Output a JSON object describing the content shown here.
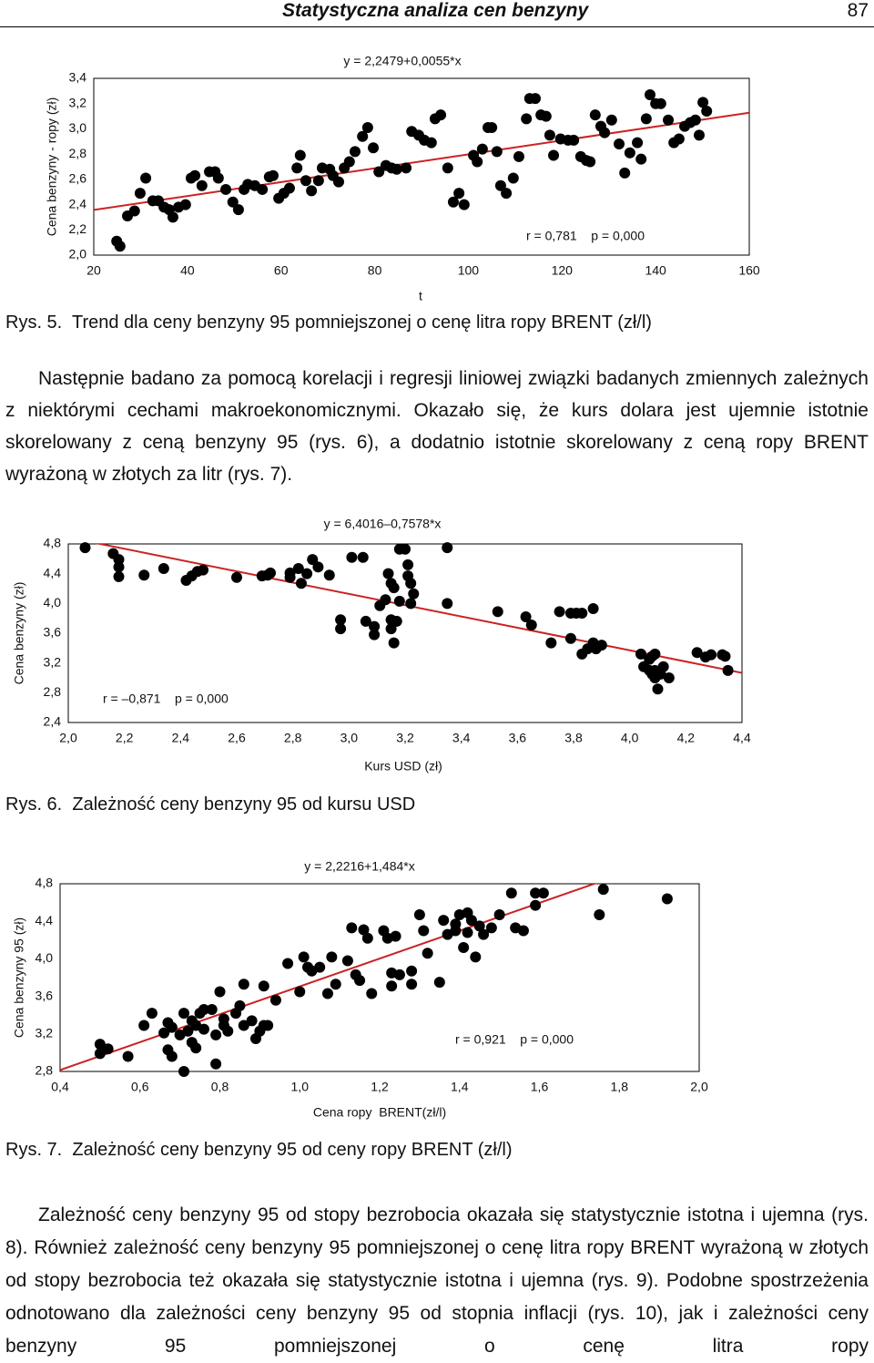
{
  "header": {
    "title": "Statystyczna analiza cen benzyny",
    "page_number": "87"
  },
  "chart_data": [
    {
      "type": "scatter",
      "title": "y = 2,2479+0,0055*x",
      "xlabel": "t",
      "ylabel": "Cena benzyny - ropy (zł)",
      "annotation": "r = 0,781    p = 0,000",
      "caption": "Rys. 5.  Trend dla ceny benzyny 95 pomniejszonej o cenę litra ropy BRENT (zł/l)",
      "color": "#000000",
      "trend": {
        "intercept": 2.2479,
        "slope": 0.0055,
        "color": "#cc2222"
      },
      "xlim": [
        20,
        160
      ],
      "xticks": [
        20,
        40,
        60,
        80,
        100,
        120,
        140,
        160
      ],
      "ylim": [
        2.0,
        3.4
      ],
      "yticks": [
        {
          "value": 2.0,
          "label": "2,0"
        },
        {
          "value": 2.2,
          "label": "2,2"
        },
        {
          "value": 2.4,
          "label": "2,4"
        },
        {
          "value": 2.6,
          "label": "2,6"
        },
        {
          "value": 2.8,
          "label": "2,8"
        },
        {
          "value": 3.0,
          "label": "3,0"
        },
        {
          "value": 3.2,
          "label": "3,2"
        },
        {
          "value": 3.4,
          "label": "3,4"
        }
      ],
      "x": [
        24.9,
        25.6,
        27.2,
        28.7,
        29.9,
        31.1,
        32.6,
        33.8,
        35.0,
        36.1,
        36.9,
        38.1,
        39.6,
        40.8,
        41.6,
        43.1,
        44.7,
        45.9,
        46.6,
        48.2,
        49.7,
        50.9,
        52.1,
        52.9,
        54.4,
        56.0,
        57.5,
        58.3,
        59.5,
        60.6,
        61.8,
        63.4,
        64.1,
        65.3,
        66.5,
        68.0,
        68.8,
        70.4,
        71.1,
        72.3,
        73.5,
        74.6,
        75.8,
        77.4,
        78.5,
        79.7,
        80.9,
        82.4,
        83.6,
        84.7,
        86.7,
        87.9,
        89.4,
        90.6,
        92.1,
        92.9,
        94.1,
        95.6,
        96.8,
        98.0,
        99.1,
        101.1,
        101.9,
        103.0,
        104.2,
        105.0,
        106.1,
        106.9,
        108.1,
        109.6,
        110.8,
        112.4,
        113.1,
        114.3,
        115.5,
        116.6,
        117.4,
        118.2,
        119.7,
        121.3,
        122.5,
        124.0,
        125.2,
        126.0,
        127.1,
        128.3,
        129.1,
        130.6,
        132.2,
        133.4,
        134.5,
        136.1,
        136.9,
        138.0,
        138.8,
        140.0,
        141.1,
        142.7,
        143.9,
        145.0,
        146.2,
        147.4,
        148.5,
        149.3,
        150.1,
        150.9
      ],
      "values": [
        2.11,
        2.07,
        2.31,
        2.35,
        2.49,
        2.61,
        2.43,
        2.43,
        2.38,
        2.36,
        2.3,
        2.38,
        2.4,
        2.61,
        2.63,
        2.55,
        2.66,
        2.66,
        2.61,
        2.52,
        2.42,
        2.36,
        2.52,
        2.56,
        2.55,
        2.52,
        2.62,
        2.63,
        2.45,
        2.49,
        2.53,
        2.69,
        2.79,
        2.59,
        2.51,
        2.59,
        2.69,
        2.68,
        2.63,
        2.58,
        2.69,
        2.74,
        2.82,
        2.94,
        3.01,
        2.85,
        2.66,
        2.71,
        2.69,
        2.68,
        2.69,
        2.98,
        2.95,
        2.91,
        2.89,
        3.08,
        3.11,
        2.69,
        2.42,
        2.49,
        2.4,
        2.79,
        2.74,
        2.84,
        3.01,
        3.01,
        2.82,
        2.55,
        2.49,
        2.61,
        2.78,
        3.08,
        3.24,
        3.24,
        3.11,
        3.1,
        2.95,
        2.79,
        2.92,
        2.91,
        2.91,
        2.78,
        2.75,
        2.74,
        3.11,
        3.02,
        2.97,
        3.07,
        2.88,
        2.65,
        2.81,
        2.89,
        2.76,
        3.08,
        3.27,
        3.2,
        3.2,
        3.07,
        2.89,
        2.92,
        3.02,
        3.05,
        3.07,
        2.95,
        3.21,
        3.14
      ]
    },
    {
      "type": "scatter",
      "title": "y = 6,4016–0,7578*x",
      "xlabel": "Kurs USD (zł)",
      "ylabel": "Cena benzyny (zł)",
      "annotation": "r = –0,871    p = 0,000",
      "caption": "Rys. 6.  Zależność ceny benzyny 95 od kursu USD",
      "color": "#000000",
      "trend": {
        "intercept": 6.4016,
        "slope": -0.7578,
        "color": "#cc2222"
      },
      "xlim": [
        2.0,
        4.4
      ],
      "xticks": [
        {
          "value": 2.0,
          "label": "2,0"
        },
        {
          "value": 2.2,
          "label": "2,2"
        },
        {
          "value": 2.4,
          "label": "2,4"
        },
        {
          "value": 2.6,
          "label": "2,6"
        },
        {
          "value": 2.8,
          "label": "2,8"
        },
        {
          "value": 3.0,
          "label": "3,0"
        },
        {
          "value": 3.2,
          "label": "3,2"
        },
        {
          "value": 3.4,
          "label": "3,4"
        },
        {
          "value": 3.6,
          "label": "3,6"
        },
        {
          "value": 3.8,
          "label": "3,8"
        },
        {
          "value": 4.0,
          "label": "4,0"
        },
        {
          "value": 4.2,
          "label": "4,2"
        },
        {
          "value": 4.4,
          "label": "4,4"
        }
      ],
      "ylim": [
        2.4,
        4.8
      ],
      "yticks": [
        {
          "value": 2.4,
          "label": "2,4"
        },
        {
          "value": 2.8,
          "label": "2,8"
        },
        {
          "value": 3.2,
          "label": "3,2"
        },
        {
          "value": 3.6,
          "label": "3,6"
        },
        {
          "value": 4.0,
          "label": "4,0"
        },
        {
          "value": 4.4,
          "label": "4,4"
        },
        {
          "value": 4.8,
          "label": "4,8"
        }
      ],
      "x": [
        2.06,
        2.16,
        2.18,
        2.18,
        2.18,
        2.27,
        2.34,
        2.42,
        2.44,
        2.46,
        2.48,
        2.6,
        2.69,
        2.71,
        2.72,
        2.79,
        2.79,
        2.82,
        2.83,
        2.85,
        2.87,
        2.89,
        2.93,
        2.97,
        2.97,
        3.01,
        3.05,
        3.06,
        3.09,
        3.09,
        3.11,
        3.13,
        3.14,
        3.15,
        3.15,
        3.15,
        3.16,
        3.16,
        3.17,
        3.18,
        3.18,
        3.2,
        3.21,
        3.21,
        3.22,
        3.22,
        3.23,
        3.35,
        3.35,
        3.53,
        3.63,
        3.65,
        3.72,
        3.75,
        3.79,
        3.79,
        3.81,
        3.83,
        3.83,
        3.85,
        3.87,
        3.87,
        3.88,
        3.9,
        4.04,
        4.05,
        4.07,
        4.08,
        4.09,
        4.09,
        4.1,
        4.11,
        4.12,
        4.14,
        4.24,
        4.27,
        4.29,
        4.33,
        4.34,
        4.35,
        4.09,
        4.08,
        4.07
      ],
      "values": [
        4.75,
        4.67,
        4.59,
        4.49,
        4.36,
        4.38,
        4.47,
        4.31,
        4.37,
        4.43,
        4.45,
        4.35,
        4.37,
        4.38,
        4.41,
        4.41,
        4.35,
        4.47,
        4.27,
        4.4,
        4.59,
        4.49,
        4.38,
        3.78,
        3.66,
        4.62,
        4.62,
        3.76,
        3.69,
        3.58,
        3.97,
        4.05,
        4.4,
        4.27,
        3.78,
        3.66,
        4.21,
        3.47,
        3.76,
        4.03,
        4.73,
        4.73,
        4.52,
        4.37,
        4.27,
        4.0,
        4.13,
        4.0,
        4.75,
        3.89,
        3.82,
        3.71,
        3.47,
        3.89,
        3.87,
        3.53,
        3.87,
        3.87,
        3.32,
        3.39,
        3.93,
        3.47,
        3.39,
        3.44,
        3.32,
        3.15,
        3.25,
        3.29,
        3.0,
        3.1,
        2.85,
        3.05,
        3.15,
        3.0,
        3.34,
        3.28,
        3.31,
        3.31,
        3.29,
        3.1,
        3.32,
        3.05,
        3.1
      ]
    },
    {
      "type": "scatter",
      "title": "y = 2,2216+1,484*x",
      "xlabel": "Cena ropy  BRENT(zł/l)",
      "ylabel": "Cena benzyny 95 (zł)",
      "annotation": "r = 0,921    p = 0,000",
      "caption": "Rys. 7.  Zależność ceny benzyny 95 od ceny ropy BRENT (zł/l)",
      "color": "#000000",
      "trend": {
        "intercept": 2.2216,
        "slope": 1.484,
        "color": "#cc2222"
      },
      "xlim": [
        0.4,
        2.0
      ],
      "xticks": [
        {
          "value": 0.4,
          "label": "0,4"
        },
        {
          "value": 0.6,
          "label": "0,6"
        },
        {
          "value": 0.8,
          "label": "0,8"
        },
        {
          "value": 1.0,
          "label": "1,0"
        },
        {
          "value": 1.2,
          "label": "1,2"
        },
        {
          "value": 1.4,
          "label": "1,4"
        },
        {
          "value": 1.6,
          "label": "1,6"
        },
        {
          "value": 1.8,
          "label": "1,8"
        },
        {
          "value": 2.0,
          "label": "2,0"
        }
      ],
      "ylim": [
        2.8,
        4.8
      ],
      "yticks": [
        {
          "value": 2.8,
          "label": "2,8"
        },
        {
          "value": 3.2,
          "label": "3,2"
        },
        {
          "value": 3.6,
          "label": "3,6"
        },
        {
          "value": 4.0,
          "label": "4,0"
        },
        {
          "value": 4.4,
          "label": "4,4"
        },
        {
          "value": 4.8,
          "label": "4,8"
        }
      ],
      "x": [
        0.5,
        0.5,
        0.52,
        0.57,
        0.61,
        0.63,
        0.66,
        0.67,
        0.67,
        0.68,
        0.68,
        0.7,
        0.71,
        0.71,
        0.72,
        0.73,
        0.73,
        0.74,
        0.74,
        0.75,
        0.76,
        0.76,
        0.78,
        0.79,
        0.79,
        0.8,
        0.81,
        0.81,
        0.82,
        0.84,
        0.85,
        0.86,
        0.86,
        0.88,
        0.89,
        0.9,
        0.91,
        0.91,
        0.92,
        0.94,
        0.97,
        1.0,
        1.01,
        1.02,
        1.03,
        1.05,
        1.07,
        1.08,
        1.09,
        1.12,
        1.13,
        1.14,
        1.15,
        1.16,
        1.17,
        1.18,
        1.21,
        1.22,
        1.23,
        1.23,
        1.24,
        1.25,
        1.28,
        1.28,
        1.3,
        1.31,
        1.32,
        1.35,
        1.36,
        1.37,
        1.39,
        1.39,
        1.4,
        1.41,
        1.42,
        1.42,
        1.43,
        1.44,
        1.45,
        1.46,
        1.48,
        1.5,
        1.53,
        1.54,
        1.56,
        1.59,
        1.59,
        1.61,
        1.75,
        1.76,
        1.92
      ],
      "values": [
        3.09,
        2.99,
        3.04,
        2.96,
        3.29,
        3.42,
        3.21,
        3.32,
        3.03,
        2.96,
        3.27,
        3.19,
        3.42,
        2.8,
        3.23,
        3.11,
        3.34,
        3.29,
        3.05,
        3.42,
        3.25,
        3.46,
        3.46,
        3.19,
        2.88,
        3.65,
        3.36,
        3.29,
        3.23,
        3.42,
        3.5,
        3.29,
        3.73,
        3.34,
        3.15,
        3.23,
        3.71,
        3.29,
        3.29,
        3.56,
        3.95,
        3.65,
        4.02,
        3.91,
        3.87,
        3.91,
        3.63,
        4.02,
        3.73,
        3.98,
        4.33,
        3.83,
        3.77,
        4.31,
        4.22,
        3.63,
        4.3,
        4.22,
        3.85,
        3.71,
        4.24,
        3.83,
        3.87,
        3.73,
        4.47,
        4.3,
        4.06,
        3.75,
        4.41,
        4.26,
        4.37,
        4.3,
        4.47,
        4.12,
        4.49,
        4.28,
        4.41,
        4.02,
        4.35,
        4.26,
        4.33,
        4.47,
        4.7,
        4.33,
        4.3,
        4.57,
        4.7,
        4.7,
        4.47,
        4.74,
        4.64
      ]
    }
  ],
  "paragraphs": [
    "Następnie badano za pomocą korelacji i regresji liniowej związki badanych zmiennych zależnych z niektórymi cechami makroekonomicznymi. Okazało się, że kurs dolara jest ujemnie istotnie skorelowany z ceną benzyny 95 (rys. 6), a dodatnio istotnie skorelowany z ceną ropy BRENT wyrażoną w złotych za litr (rys. 7).",
    "Zależność ceny benzyny 95 od stopy bezrobocia okazała się statystycznie istotna i ujemna (rys. 8). Również zależność ceny benzyny 95 pomniejszonej o cenę litra ropy BRENT wyrażoną w złotych od stopy bezrobocia też okazała się statystycznie istotna i ujemna (rys. 9). Podobne spostrzeżenia odnotowano dla zależności ceny benzyny 95 od stopnia inflacji (rys. 10), jak i zależności ceny benzyny 95 pomniejszonej o cenę litra ropy"
  ]
}
